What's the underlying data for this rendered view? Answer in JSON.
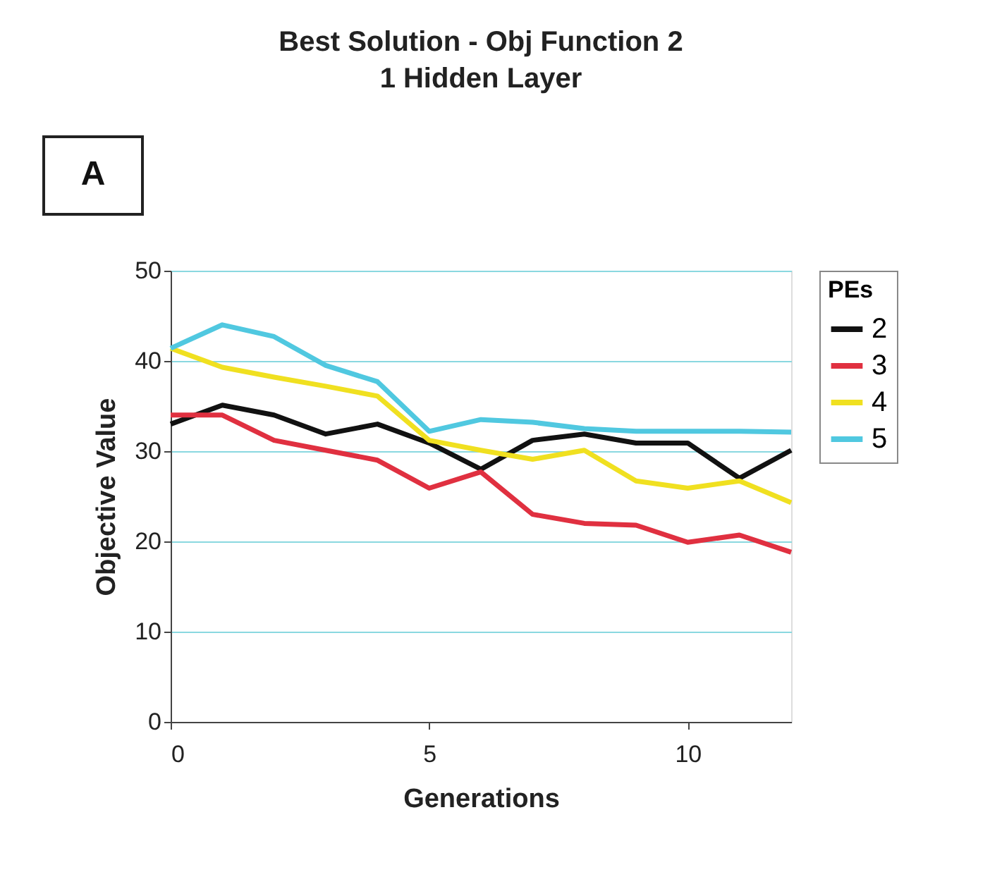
{
  "chart_data": {
    "type": "line",
    "title": "Best Solution - Obj Function 2",
    "subtitle": "1 Hidden Layer",
    "xlabel": "Generations",
    "ylabel": "Objective Value",
    "legend_title": "PEs",
    "legend": "right",
    "grid": "y",
    "annotations": [
      "A"
    ],
    "x": [
      0,
      1,
      2,
      3,
      4,
      5,
      6,
      7,
      8,
      9,
      10,
      11,
      12
    ],
    "xlim": [
      0,
      12
    ],
    "xticks": [
      0,
      5,
      10
    ],
    "ylim": [
      0,
      50
    ],
    "yticks": [
      0,
      10,
      20,
      30,
      40,
      50
    ],
    "series": [
      {
        "name": "2",
        "color": "#111111",
        "values": [
          33,
          35.1,
          34,
          31.9,
          33,
          30.9,
          28,
          31.2,
          31.9,
          30.9,
          30.9,
          27,
          30.1
        ]
      },
      {
        "name": "3",
        "color": "#e03040",
        "values": [
          34,
          34,
          31.2,
          30.1,
          29,
          25.9,
          27.7,
          23,
          22,
          21.8,
          19.9,
          20.7,
          18.8
        ]
      },
      {
        "name": "4",
        "color": "#f0e020",
        "values": [
          41.4,
          39.3,
          38.2,
          37.2,
          36.1,
          31.2,
          30.1,
          29.1,
          30.1,
          26.7,
          25.9,
          26.7,
          24.3
        ]
      },
      {
        "name": "5",
        "color": "#50c8e0",
        "values": [
          41.4,
          44,
          42.7,
          39.5,
          37.7,
          32.2,
          33.5,
          33.2,
          32.5,
          32.2,
          32.2,
          32.2,
          32.1
        ]
      }
    ]
  }
}
